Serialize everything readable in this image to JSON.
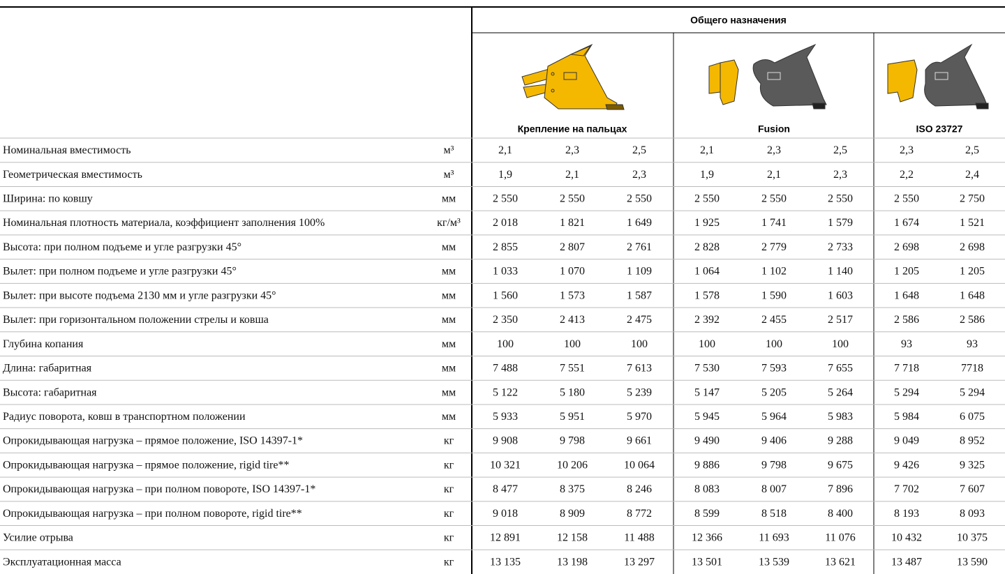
{
  "header": {
    "group_title": "Общего назначения",
    "subgroups": [
      {
        "label": "Крепление на пальцах"
      },
      {
        "label": "Fusion"
      },
      {
        "label": "ISO 23727"
      }
    ]
  },
  "table": {
    "rows": [
      {
        "label": "Номинальная вместимость",
        "unit": "м³",
        "values": [
          "2,1",
          "2,3",
          "2,5",
          "2,1",
          "2,3",
          "2,5",
          "2,3",
          "2,5"
        ]
      },
      {
        "label": "Геометрическая вместимость",
        "unit": "м³",
        "values": [
          "1,9",
          "2,1",
          "2,3",
          "1,9",
          "2,1",
          "2,3",
          "2,2",
          "2,4"
        ]
      },
      {
        "label": "Ширина: по ковшу",
        "unit": "мм",
        "values": [
          "2 550",
          "2 550",
          "2 550",
          "2 550",
          "2 550",
          "2 550",
          "2 550",
          "2 750"
        ]
      },
      {
        "label": "Номинальная плотность материала, коэффициент заполнения 100%",
        "unit": "кг/м³",
        "values": [
          "2 018",
          "1 821",
          "1 649",
          "1 925",
          "1 741",
          "1 579",
          "1 674",
          "1 521"
        ]
      },
      {
        "label": "Высота: при полном подъеме и угле разгрузки 45°",
        "unit": "мм",
        "values": [
          "2 855",
          "2 807",
          "2 761",
          "2 828",
          "2 779",
          "2 733",
          "2 698",
          "2 698"
        ]
      },
      {
        "label": "Вылет: при полном подъеме и угле разгрузки 45°",
        "unit": "мм",
        "values": [
          "1 033",
          "1 070",
          "1 109",
          "1 064",
          "1 102",
          "1 140",
          "1 205",
          "1 205"
        ]
      },
      {
        "label": "Вылет: при высоте подъема 2130 мм и угле разгрузки 45°",
        "unit": "мм",
        "values": [
          "1 560",
          "1 573",
          "1 587",
          "1 578",
          "1 590",
          "1 603",
          "1 648",
          "1 648"
        ]
      },
      {
        "label": "Вылет: при горизонтальном положении стрелы и ковша",
        "unit": "мм",
        "values": [
          "2 350",
          "2 413",
          "2 475",
          "2 392",
          "2 455",
          "2 517",
          "2 586",
          "2 586"
        ]
      },
      {
        "label": "Глубина копания",
        "unit": "мм",
        "values": [
          "100",
          "100",
          "100",
          "100",
          "100",
          "100",
          "93",
          "93"
        ]
      },
      {
        "label": "Длина: габаритная",
        "unit": "мм",
        "values": [
          "7 488",
          "7 551",
          "7 613",
          "7 530",
          "7 593",
          "7 655",
          "7 718",
          "7718"
        ]
      },
      {
        "label": "Высота: габаритная",
        "unit": "мм",
        "values": [
          "5 122",
          "5 180",
          "5 239",
          "5 147",
          "5 205",
          "5 264",
          "5 294",
          "5 294"
        ]
      },
      {
        "label": "Радиус поворота, ковш в транспортном положении",
        "unit": "мм",
        "values": [
          "5 933",
          "5 951",
          "5 970",
          "5 945",
          "5 964",
          "5 983",
          "5 984",
          "6 075"
        ]
      },
      {
        "label": "Опрокидывающая нагрузка – прямое положение, ISO 14397-1*",
        "unit": "кг",
        "values": [
          "9 908",
          "9 798",
          "9 661",
          "9 490",
          "9 406",
          "9 288",
          "9 049",
          "8 952"
        ]
      },
      {
        "label": "Опрокидывающая нагрузка – прямое положение, rigid tire**",
        "unit": "кг",
        "values": [
          "10 321",
          "10 206",
          "10 064",
          "9 886",
          "9 798",
          "9 675",
          "9 426",
          "9 325"
        ]
      },
      {
        "label": "Опрокидывающая нагрузка – при полном повороте, ISO 14397-1*",
        "unit": "кг",
        "values": [
          "8 477",
          "8 375",
          "8 246",
          "8 083",
          "8 007",
          "7 896",
          "7 702",
          "7 607"
        ]
      },
      {
        "label": "Опрокидывающая нагрузка – при полном повороте, rigid tire**",
        "unit": "кг",
        "values": [
          "9 018",
          "8 909",
          "8 772",
          "8 599",
          "8 518",
          "8 400",
          "8 193",
          "8 093"
        ]
      },
      {
        "label": "Усилие отрыва",
        "unit": "кг",
        "values": [
          "12 891",
          "12 158",
          "11 488",
          "12 366",
          "11 693",
          "11 076",
          "10 432",
          "10 375"
        ]
      },
      {
        "label": "Эксплуатационная масса",
        "unit": "кг",
        "values": [
          "13 135",
          "13 198",
          "13 297",
          "13 501",
          "13 539",
          "13 621",
          "13 487",
          "13 590"
        ]
      }
    ]
  }
}
